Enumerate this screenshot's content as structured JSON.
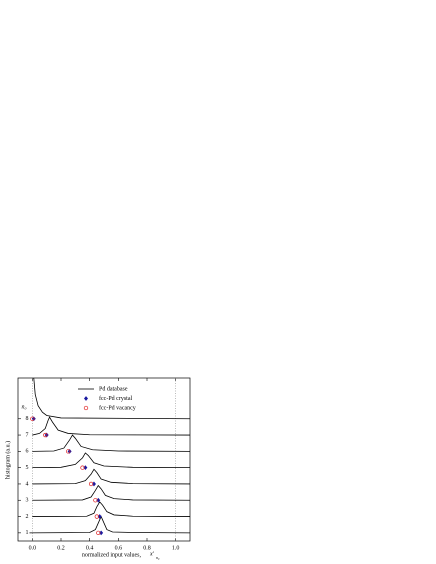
{
  "chart_data": {
    "type": "line",
    "xlabel": "normalized input values,",
    "xlabel_symbol": "x'",
    "xlabel_subscript": "n₀",
    "ylabel": "histogram (a.u.)",
    "ylevel_label": "n₀",
    "xlim": [
      -0.1,
      1.1
    ],
    "xticks": [
      {
        "value": 0,
        "label": "0.0"
      },
      {
        "value": 0.2,
        "label": "0.2"
      },
      {
        "value": 0.4,
        "label": "0.4"
      },
      {
        "value": 0.6,
        "label": "0.6"
      },
      {
        "value": 0.8,
        "label": "0.8"
      },
      {
        "value": 1,
        "label": "1.0"
      }
    ],
    "ylim": [
      0.5,
      10.5
    ],
    "yticks": [
      1,
      2,
      3,
      4,
      5,
      6,
      7,
      8
    ],
    "reference_lines": [
      0,
      1
    ],
    "legend": "upper right",
    "series": [
      {
        "name": "Pd database",
        "color": "#000000",
        "lines": [
          {
            "x": [
              0,
              0.005,
              0.01,
              0.02,
              0.04,
              0.07,
              0.1,
              0.2,
              1.1
            ],
            "values": [
              10.5,
              10.5,
              10.5,
              9.5,
              8.8,
              8.4,
              8.2,
              8.05,
              8.0
            ]
          },
          {
            "x": [
              0,
              0.05,
              0.09,
              0.11,
              0.12,
              0.14,
              0.18,
              0.25,
              0.4,
              1.1
            ],
            "values": [
              7.0,
              7.1,
              7.4,
              7.9,
              8.1,
              7.8,
              7.3,
              7.1,
              7.02,
              7.0
            ]
          },
          {
            "x": [
              0,
              0.15,
              0.22,
              0.26,
              0.28,
              0.3,
              0.34,
              0.42,
              0.6,
              1.1
            ],
            "values": [
              6.0,
              6.02,
              6.2,
              6.7,
              7.0,
              6.8,
              6.3,
              6.1,
              6.02,
              6.0
            ]
          },
          {
            "x": [
              0,
              0.2,
              0.3,
              0.35,
              0.37,
              0.39,
              0.43,
              0.5,
              0.7,
              1.1
            ],
            "values": [
              5.0,
              5.02,
              5.2,
              5.6,
              5.9,
              5.75,
              5.3,
              5.1,
              5.02,
              5.0
            ]
          },
          {
            "x": [
              0,
              0.3,
              0.37,
              0.41,
              0.43,
              0.45,
              0.48,
              0.55,
              0.7,
              1.1
            ],
            "values": [
              4.0,
              4.02,
              4.2,
              4.6,
              4.9,
              4.7,
              4.3,
              4.1,
              4.02,
              4.0
            ]
          },
          {
            "x": [
              0,
              0.35,
              0.41,
              0.44,
              0.46,
              0.48,
              0.51,
              0.57,
              0.7,
              1.1
            ],
            "values": [
              3.0,
              3.02,
              3.2,
              3.6,
              3.9,
              3.7,
              3.3,
              3.1,
              3.02,
              3.0
            ]
          },
          {
            "x": [
              0,
              0.38,
              0.43,
              0.45,
              0.47,
              0.49,
              0.52,
              0.57,
              0.7,
              1.1
            ],
            "values": [
              2.0,
              2.02,
              2.2,
              2.6,
              2.9,
              2.7,
              2.3,
              2.1,
              2.02,
              2.0
            ]
          },
          {
            "x": [
              -0.02,
              0.4,
              0.44,
              0.46,
              0.48,
              0.5,
              0.52,
              0.56,
              0.7,
              1.1
            ],
            "values": [
              1.0,
              1.02,
              1.2,
              1.6,
              2.0,
              1.6,
              1.2,
              1.05,
              1.02,
              1.0
            ]
          }
        ]
      },
      {
        "name": "fcc-Pd crystal",
        "color": "#1a1aa0",
        "marker": "diamond",
        "x": [
          0.01,
          0.1,
          0.26,
          0.37,
          0.43,
          0.46,
          0.47,
          0.48
        ],
        "values": [
          8,
          7,
          6,
          5,
          4,
          3,
          2,
          1
        ]
      },
      {
        "name": "fcc-Pd vacancy",
        "color": "#e02020",
        "marker": "circle-open",
        "x": [
          0,
          0.09,
          0.25,
          0.35,
          0.41,
          0.44,
          0.45,
          0.46
        ],
        "values": [
          8,
          7,
          6,
          5,
          4,
          3,
          2,
          1
        ]
      }
    ]
  }
}
